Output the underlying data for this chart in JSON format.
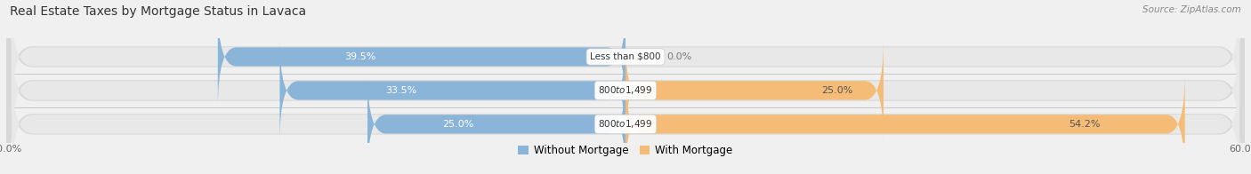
{
  "title": "Real Estate Taxes by Mortgage Status in Lavaca",
  "source": "Source: ZipAtlas.com",
  "rows": [
    {
      "label": "Less than $800",
      "without_pct": 39.5,
      "with_pct": 0.0
    },
    {
      "label": "$800 to $1,499",
      "without_pct": 33.5,
      "with_pct": 25.0
    },
    {
      "label": "$800 to $1,499",
      "without_pct": 25.0,
      "with_pct": 54.2
    }
  ],
  "x_min": -60.0,
  "x_max": 60.0,
  "color_without": "#8ab4d8",
  "color_with": "#f5bc78",
  "color_bg_bar": "#e4e4e4",
  "color_bg_bar_inner": "#dcdcdc",
  "legend_labels": [
    "Without Mortgage",
    "With Mortgage"
  ],
  "bar_height": 0.62,
  "fig_bg": "#f0f0f0"
}
